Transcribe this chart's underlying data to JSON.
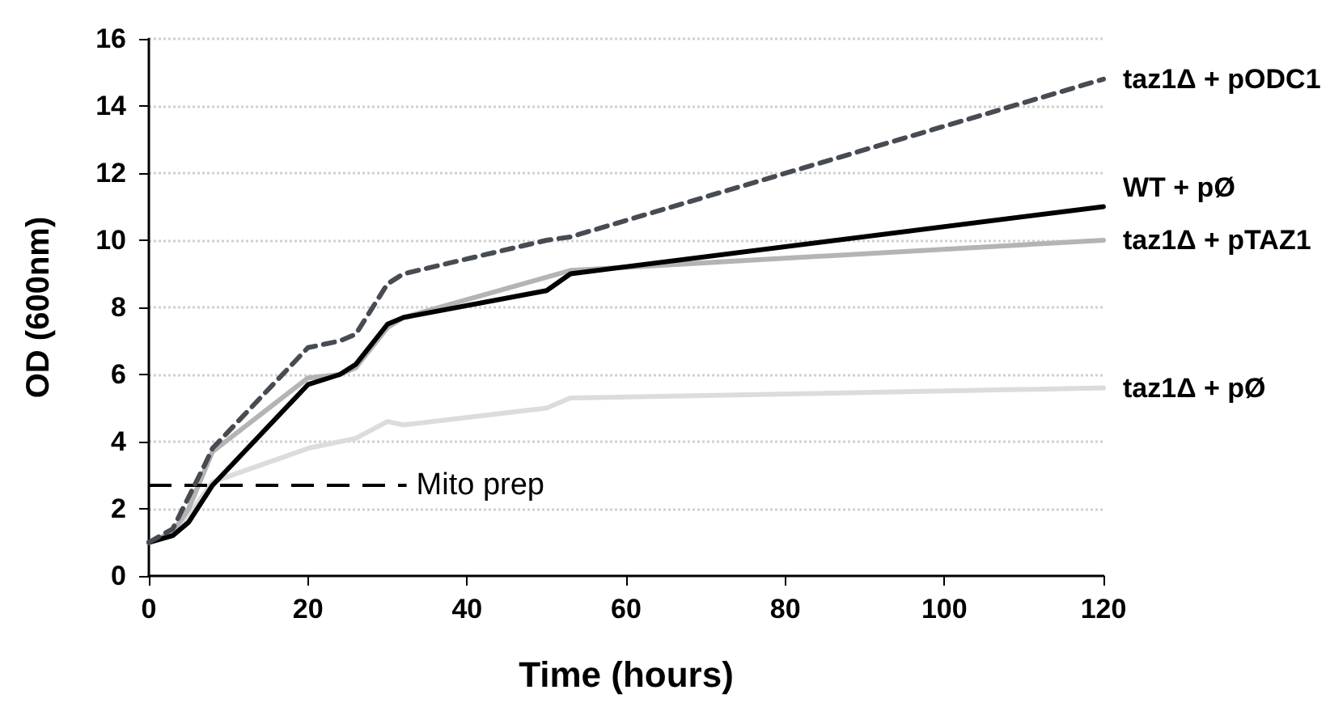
{
  "chart_data": {
    "type": "line",
    "xlabel": "Time (hours)",
    "ylabel": "OD (600nm)",
    "xlim": [
      0,
      120
    ],
    "xticks": [
      0,
      20,
      40,
      60,
      80,
      100,
      120
    ],
    "ylim": [
      0,
      16
    ],
    "yticks": [
      0,
      2,
      4,
      6,
      8,
      10,
      12,
      14,
      16
    ],
    "grid": "y",
    "legend": false,
    "marker": "none",
    "series": [
      {
        "name": "taz1Δ + pODC1",
        "color": "#474b52",
        "line_style": "dashed",
        "x": [
          0,
          3,
          7,
          8,
          20,
          24,
          26,
          30,
          32,
          50,
          53,
          120
        ],
        "values": [
          1.0,
          1.4,
          3.3,
          3.8,
          6.8,
          7.0,
          7.2,
          8.7,
          9.0,
          10.0,
          10.1,
          14.8
        ]
      },
      {
        "name": "WT + pØ",
        "color": "#000000",
        "line_style": "solid",
        "x": [
          0,
          3,
          5,
          8,
          20,
          24,
          26,
          30,
          32,
          50,
          53,
          120
        ],
        "values": [
          1.0,
          1.2,
          1.6,
          2.7,
          5.7,
          6.0,
          6.3,
          7.5,
          7.7,
          8.5,
          9.0,
          11.0
        ]
      },
      {
        "name": "taz1Δ + pTAZ1",
        "color": "#b4b4b4",
        "line_style": "solid",
        "x": [
          0,
          3,
          5,
          8,
          20,
          24,
          26,
          30,
          32,
          53,
          120
        ],
        "values": [
          1.0,
          1.3,
          2.0,
          3.7,
          5.9,
          6.0,
          6.2,
          7.4,
          7.7,
          9.1,
          10.0
        ]
      },
      {
        "name": "taz1Δ + pØ",
        "color": "#dcdcdc",
        "line_style": "solid",
        "x": [
          0,
          3,
          5,
          8,
          20,
          24,
          26,
          30,
          32,
          50,
          53,
          120
        ],
        "values": [
          1.0,
          1.2,
          1.8,
          2.8,
          3.8,
          4.0,
          4.1,
          4.6,
          4.5,
          5.0,
          5.3,
          5.6
        ]
      }
    ],
    "ref_lines": [
      {
        "axis": "y",
        "value": 2.7,
        "label": "Mito prep",
        "color": "#000000",
        "line_style": "dashed"
      }
    ]
  }
}
